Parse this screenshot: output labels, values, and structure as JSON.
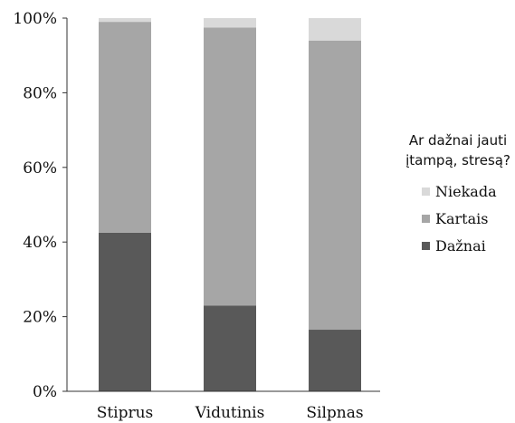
{
  "chart_data": {
    "type": "bar",
    "stacked": true,
    "categories": [
      "Stiprus",
      "Vidutinis",
      "Silpnas"
    ],
    "series": [
      {
        "name": "Dažnai",
        "values": [
          42.5,
          23,
          16.5
        ],
        "color": "#595959"
      },
      {
        "name": "Kartais",
        "values": [
          56.5,
          74.5,
          77.5
        ],
        "color": "#a6a6a6"
      },
      {
        "name": "Niekada",
        "values": [
          1,
          2.5,
          6
        ],
        "color": "#d9d9d9"
      }
    ],
    "ylim": [
      0,
      100
    ],
    "yticks": [
      "0%",
      "20%",
      "40%",
      "60%",
      "80%",
      "100%"
    ],
    "ytick_values": [
      0,
      20,
      40,
      60,
      80,
      100
    ],
    "legend_title_line1": "Ar dažnai jauti",
    "legend_title_line2": "įtampą, stresą?",
    "legend_position": "right",
    "legend_order": [
      "Niekada",
      "Kartais",
      "Dažnai"
    ],
    "grid": false
  }
}
